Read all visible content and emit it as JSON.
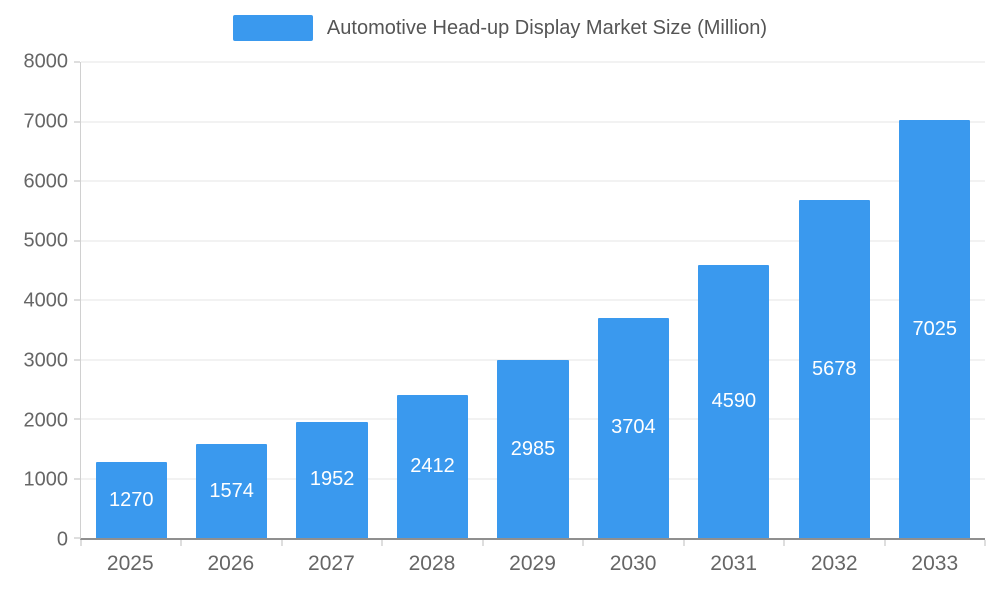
{
  "chart": {
    "legend_label": "Automotive Head-up Display Market Size (Million)",
    "accent_color": "#3A99EE",
    "axis_text_color": "#666666",
    "grid_color": "#e4e4e4",
    "value_label_color": "#ffffff"
  },
  "chart_data": {
    "type": "bar",
    "title": "Automotive Head-up Display Market Size (Million)",
    "categories": [
      "2025",
      "2026",
      "2027",
      "2028",
      "2029",
      "2030",
      "2031",
      "2032",
      "2033"
    ],
    "values": [
      1270,
      1574,
      1952,
      2412,
      2985,
      3704,
      4590,
      5678,
      7025
    ],
    "series": [
      {
        "name": "Automotive Head-up Display Market Size (Million)",
        "values": [
          1270,
          1574,
          1952,
          2412,
          2985,
          3704,
          4590,
          5678,
          7025
        ]
      }
    ],
    "xlabel": "",
    "ylabel": "",
    "ylim": [
      0,
      8000
    ],
    "ytick_step": 1000,
    "ytick_labels": [
      "0",
      "1000",
      "2000",
      "3000",
      "4000",
      "5000",
      "6000",
      "7000",
      "8000"
    ],
    "grid": true,
    "legend_position": "top-center",
    "bar_color": "#3A99EE",
    "value_labels": "inside-center"
  }
}
